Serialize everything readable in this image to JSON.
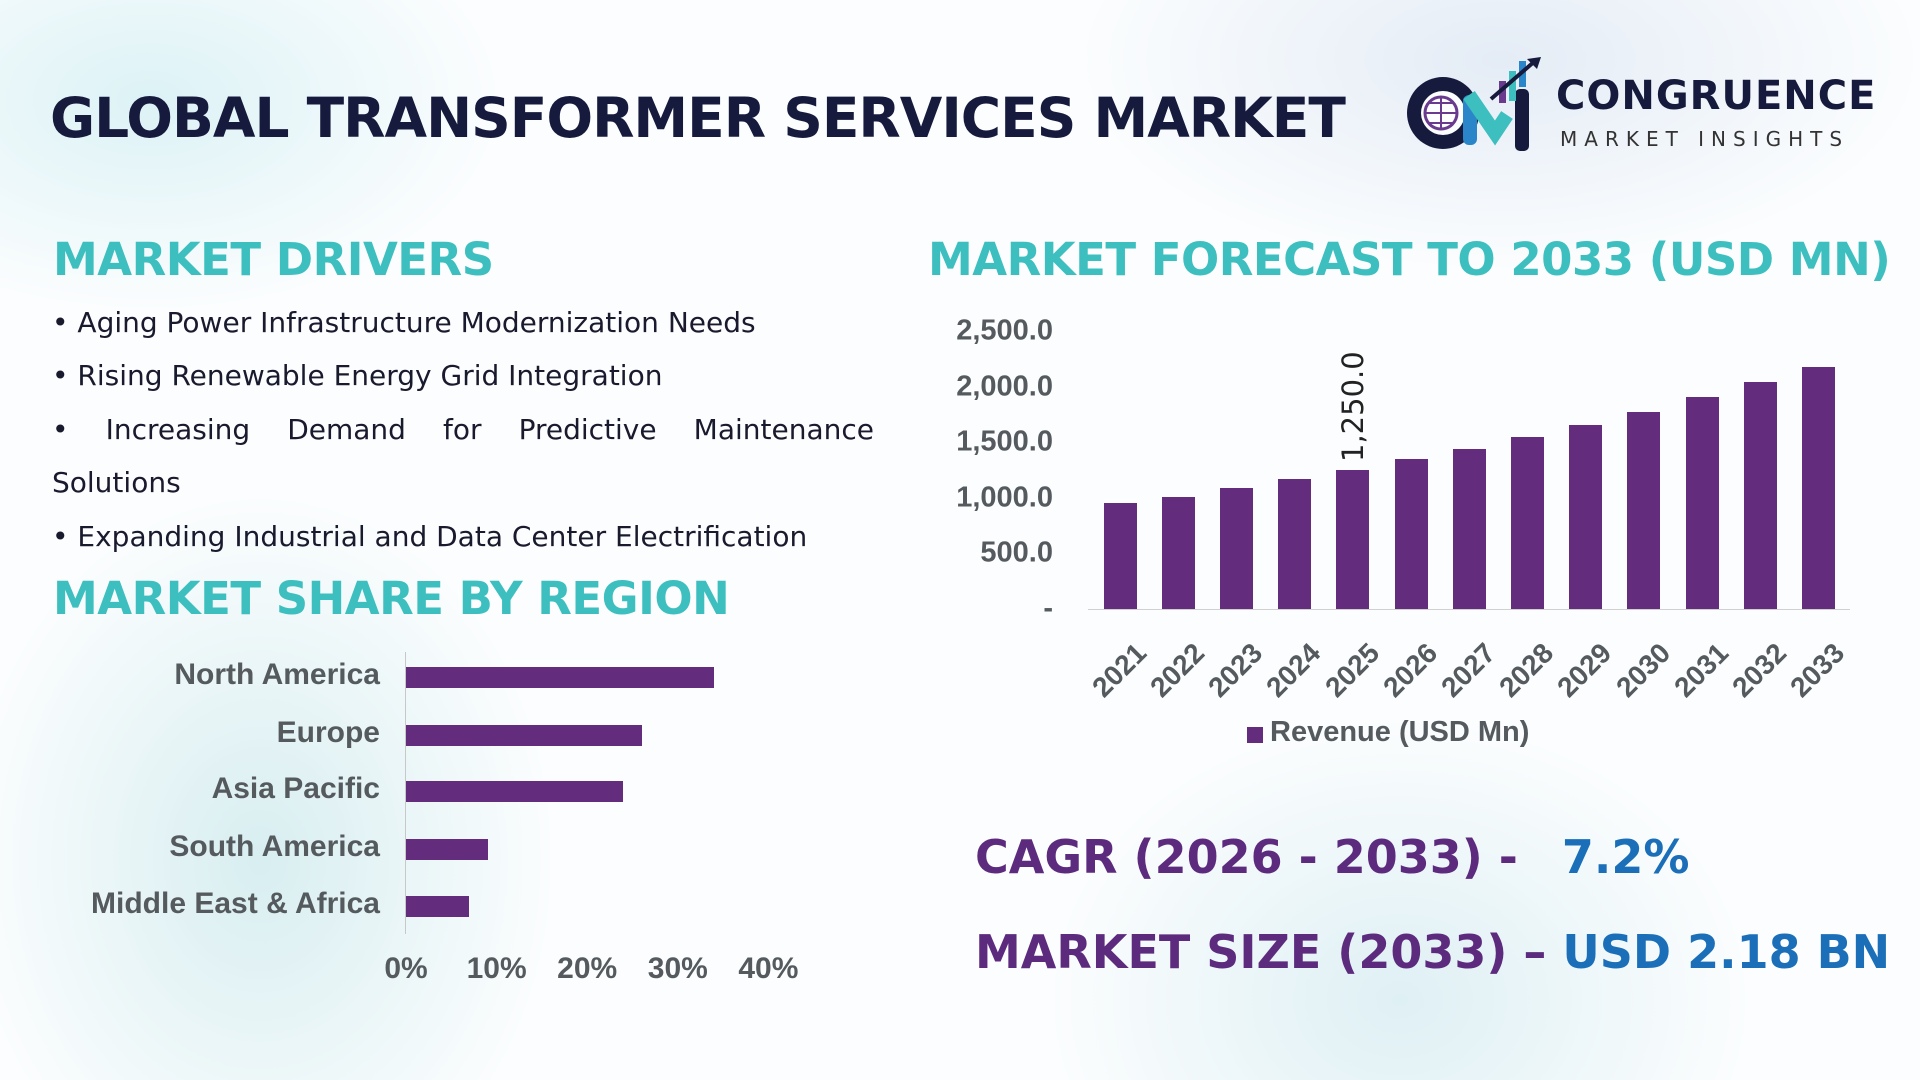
{
  "header": {
    "title": "GLOBAL TRANSFORMER SERVICES MARKET",
    "logo": {
      "name": "CONGRUENCE",
      "tagline": "MARKET INSIGHTS"
    }
  },
  "drivers": {
    "heading": "MARKET DRIVERS",
    "items": [
      "• Aging Power Infrastructure Modernization Needs",
      "• Rising Renewable Energy Grid Integration",
      "• Increasing Demand for Predictive Maintenance",
      "Solutions",
      "• Expanding Industrial and Data Center Electrification"
    ]
  },
  "colors": {
    "bar": "#632c7c",
    "heading": "#3dbfc0",
    "title": "#161a3c",
    "stat_label": "#5d2b7e",
    "stat_value": "#1b6fb8"
  },
  "chart_data": [
    {
      "type": "bar",
      "orientation": "horizontal",
      "title": "MARKET SHARE BY REGION",
      "categories": [
        "North America",
        "Europe",
        "Asia Pacific",
        "South America",
        "Middle East & Africa"
      ],
      "values": [
        34,
        26,
        24,
        9,
        7
      ],
      "unit": "%",
      "xlim": [
        0,
        40
      ],
      "xticks": [
        "0%",
        "10%",
        "20%",
        "30%",
        "40%"
      ],
      "grid": false
    },
    {
      "type": "bar",
      "title": "MARKET FORECAST TO 2033 (USD MN)",
      "categories": [
        "2021",
        "2022",
        "2023",
        "2024",
        "2025",
        "2026",
        "2027",
        "2028",
        "2029",
        "2030",
        "2031",
        "2032",
        "2033"
      ],
      "series": [
        {
          "name": "Revenue (USD Mn)",
          "values": [
            950,
            1010,
            1090,
            1165,
            1250,
            1345,
            1435,
            1545,
            1655,
            1770,
            1905,
            2040,
            2180
          ]
        }
      ],
      "data_labels": [
        {
          "category": "2025",
          "text": "1,250.0"
        }
      ],
      "ylim": [
        0,
        2500
      ],
      "yticks": [
        "-",
        "500.0",
        "1,000.0",
        "1,500.0",
        "2,000.0",
        "2,500.0"
      ],
      "legend": "bottom",
      "grid": false
    }
  ],
  "stats": {
    "cagr_label": "CAGR (2026 - 2033) -",
    "cagr_value": "7.2%",
    "size_label": "MARKET SIZE (2033) –",
    "size_value": "USD 2.18 BN"
  }
}
